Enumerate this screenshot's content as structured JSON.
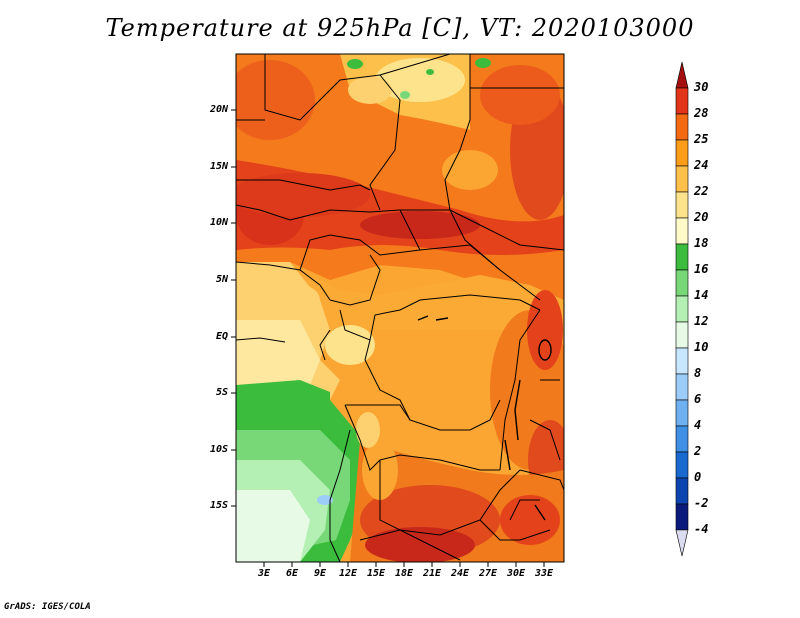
{
  "title": "Temperature at 925hPa [C], VT: 2020103000",
  "credit": "GrADS: IGES/COLA",
  "map": {
    "lat_labels": [
      "20N",
      "15N",
      "10N",
      "5N",
      "EQ",
      "5S",
      "10S",
      "15S"
    ],
    "lon_labels": [
      "3E",
      "6E",
      "9E",
      "12E",
      "15E",
      "18E",
      "21E",
      "24E",
      "27E",
      "30E",
      "33E"
    ]
  },
  "colorbar": {
    "labels": [
      "30",
      "28",
      "25",
      "24",
      "22",
      "20",
      "18",
      "16",
      "14",
      "12",
      "10",
      "8",
      "6",
      "4",
      "2",
      "0",
      "-2",
      "-4"
    ],
    "colors": [
      "#a50f0f",
      "#e23418",
      "#f46a12",
      "#fb9d18",
      "#fdc04a",
      "#fee38d",
      "#fffac8",
      "#3cbc3c",
      "#78d878",
      "#b4f0b4",
      "#e6fae6",
      "#c8e6ff",
      "#9ccdf8",
      "#6eb0f0",
      "#3f8fe4",
      "#1a69d0",
      "#0d45b0",
      "#0a1a7a",
      "#dcdcf0"
    ]
  }
}
